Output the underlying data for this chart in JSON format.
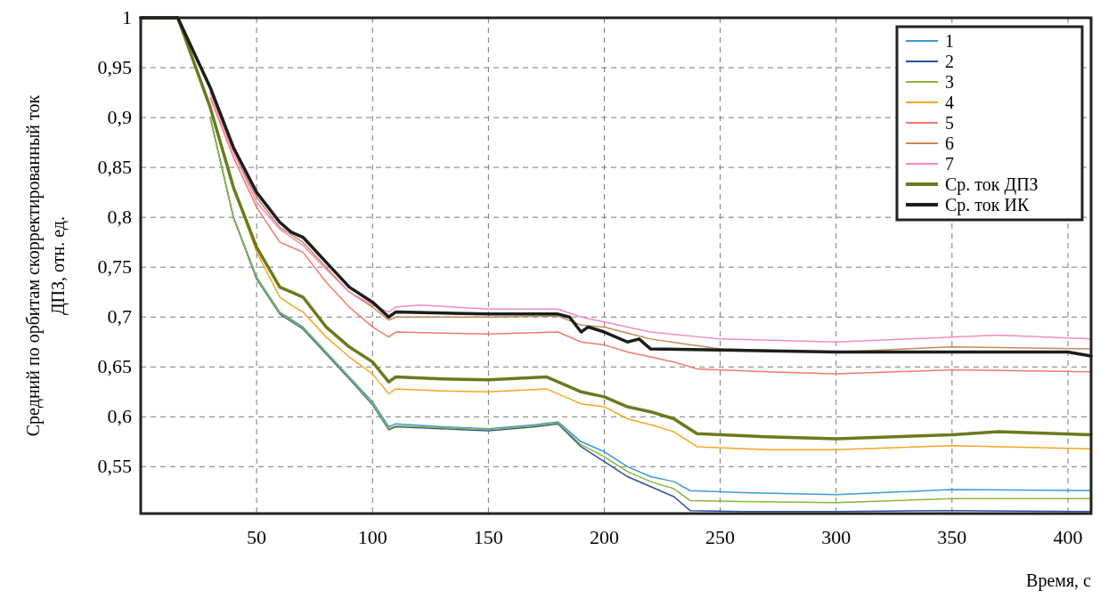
{
  "chart_data": {
    "type": "line",
    "xlabel": "Время, с",
    "ylabel": "Средний по орбитам скорректированный ток ДПЗ, отн. ед.",
    "xlim": [
      0,
      410
    ],
    "ylim": [
      0.503,
      1
    ],
    "xticks": [
      50,
      100,
      150,
      200,
      250,
      300,
      350,
      400
    ],
    "yticks": [
      1,
      {
        "value": 0.95,
        "label": "0,95"
      },
      {
        "value": 0.9,
        "label": "0,9"
      },
      {
        "value": 0.85,
        "label": "0,85"
      },
      {
        "value": 0.8,
        "label": "0,8"
      },
      {
        "value": 0.75,
        "label": "0,75"
      },
      {
        "value": 0.7,
        "label": "0,7"
      },
      {
        "value": 0.65,
        "label": "0,65"
      },
      {
        "value": 0.6,
        "label": "0,6"
      },
      {
        "value": 0.55,
        "label": "0,55"
      }
    ],
    "grid": true,
    "legend": "top right",
    "line_style": "solid",
    "series": [
      {
        "name": "1",
        "color": "#3a9ad9",
        "x": [
          40,
          50,
          60,
          70,
          80,
          90,
          100,
          107,
          110,
          130,
          150,
          170,
          180,
          190,
          200,
          210,
          220,
          230,
          237,
          260,
          300,
          350,
          410
        ],
        "values": [
          0.8,
          0.74,
          0.705,
          0.69,
          0.665,
          0.64,
          0.615,
          0.59,
          0.593,
          0.59,
          0.588,
          0.592,
          0.595,
          0.575,
          0.565,
          0.55,
          0.54,
          0.535,
          0.526,
          0.524,
          0.522,
          0.527,
          0.526
        ]
      },
      {
        "name": "2",
        "color": "#2b4fa0",
        "x": [
          30,
          40,
          50,
          60,
          70,
          80,
          90,
          100,
          107,
          110,
          130,
          150,
          170,
          180,
          190,
          200,
          210,
          220,
          230,
          237,
          260,
          300,
          350,
          410
        ],
        "values": [
          0.9,
          0.8,
          0.738,
          0.703,
          0.688,
          0.663,
          0.638,
          0.612,
          0.587,
          0.59,
          0.588,
          0.586,
          0.59,
          0.593,
          0.57,
          0.555,
          0.54,
          0.53,
          0.52,
          0.506,
          0.505,
          0.505,
          0.506,
          0.505
        ]
      },
      {
        "name": "3",
        "color": "#8ab53a",
        "x": [
          30,
          40,
          50,
          60,
          70,
          80,
          90,
          100,
          107,
          110,
          130,
          150,
          170,
          180,
          190,
          200,
          210,
          220,
          230,
          237,
          260,
          300,
          350,
          410
        ],
        "values": [
          0.9,
          0.8,
          0.739,
          0.704,
          0.689,
          0.664,
          0.639,
          0.613,
          0.588,
          0.591,
          0.589,
          0.587,
          0.591,
          0.594,
          0.572,
          0.56,
          0.545,
          0.535,
          0.528,
          0.516,
          0.515,
          0.514,
          0.518,
          0.518
        ]
      },
      {
        "name": "4",
        "color": "#f5a623",
        "x": [
          40,
          50,
          60,
          65,
          70,
          80,
          90,
          100,
          107,
          110,
          130,
          150,
          175,
          185,
          190,
          200,
          210,
          220,
          230,
          240,
          270,
          300,
          350,
          410
        ],
        "values": [
          0.83,
          0.765,
          0.72,
          0.712,
          0.705,
          0.68,
          0.66,
          0.643,
          0.623,
          0.628,
          0.626,
          0.625,
          0.628,
          0.618,
          0.613,
          0.61,
          0.598,
          0.592,
          0.585,
          0.57,
          0.567,
          0.567,
          0.571,
          0.568
        ]
      },
      {
        "name": "5",
        "color": "#f07a6a",
        "x": [
          30,
          40,
          50,
          60,
          65,
          70,
          80,
          90,
          100,
          107,
          110,
          130,
          150,
          180,
          190,
          200,
          210,
          220,
          230,
          240,
          270,
          300,
          350,
          410
        ],
        "values": [
          0.92,
          0.86,
          0.81,
          0.775,
          0.77,
          0.765,
          0.735,
          0.71,
          0.69,
          0.68,
          0.685,
          0.684,
          0.683,
          0.685,
          0.675,
          0.672,
          0.665,
          0.66,
          0.655,
          0.648,
          0.645,
          0.643,
          0.647,
          0.645
        ]
      },
      {
        "name": "6",
        "color": "#c8875a",
        "x": [
          30,
          40,
          50,
          60,
          70,
          80,
          90,
          100,
          107,
          110,
          130,
          150,
          180,
          190,
          200,
          210,
          220,
          250,
          300,
          350,
          410
        ],
        "values": [
          0.925,
          0.865,
          0.82,
          0.79,
          0.775,
          0.75,
          0.725,
          0.71,
          0.697,
          0.7,
          0.7,
          0.7,
          0.701,
          0.692,
          0.69,
          0.684,
          0.678,
          0.668,
          0.665,
          0.67,
          0.668
        ]
      },
      {
        "name": "7",
        "color": "#f08cc0",
        "x": [
          30,
          40,
          50,
          60,
          70,
          80,
          90,
          100,
          107,
          110,
          120,
          150,
          180,
          190,
          200,
          210,
          220,
          250,
          300,
          350,
          370,
          410
        ],
        "values": [
          0.925,
          0.865,
          0.815,
          0.788,
          0.772,
          0.748,
          0.725,
          0.712,
          0.705,
          0.71,
          0.712,
          0.708,
          0.708,
          0.7,
          0.695,
          0.69,
          0.685,
          0.678,
          0.675,
          0.68,
          0.682,
          0.678
        ]
      },
      {
        "name": "Ср. ток ДПЗ",
        "color": "#6b7a1e",
        "x": [
          0,
          16,
          30,
          40,
          50,
          60,
          65,
          70,
          80,
          90,
          100,
          107,
          110,
          130,
          150,
          175,
          185,
          190,
          200,
          210,
          220,
          230,
          240,
          270,
          300,
          350,
          370,
          410
        ],
        "values": [
          1,
          1,
          0.91,
          0.83,
          0.77,
          0.73,
          0.725,
          0.72,
          0.69,
          0.67,
          0.655,
          0.635,
          0.64,
          0.638,
          0.637,
          0.64,
          0.63,
          0.625,
          0.62,
          0.61,
          0.605,
          0.598,
          0.583,
          0.58,
          0.578,
          0.582,
          0.585,
          0.582
        ]
      },
      {
        "name": "Ср. ток ИК",
        "color": "#1a1f1a",
        "x": [
          0,
          16,
          30,
          40,
          50,
          60,
          65,
          70,
          80,
          90,
          100,
          107,
          110,
          150,
          180,
          185,
          190,
          193,
          200,
          210,
          215,
          220,
          250,
          300,
          350,
          400,
          410
        ],
        "values": [
          1,
          1,
          0.93,
          0.87,
          0.825,
          0.795,
          0.785,
          0.78,
          0.755,
          0.73,
          0.715,
          0.7,
          0.705,
          0.703,
          0.703,
          0.7,
          0.685,
          0.69,
          0.685,
          0.675,
          0.678,
          0.668,
          0.667,
          0.665,
          0.665,
          0.665,
          0.661
        ]
      }
    ]
  }
}
